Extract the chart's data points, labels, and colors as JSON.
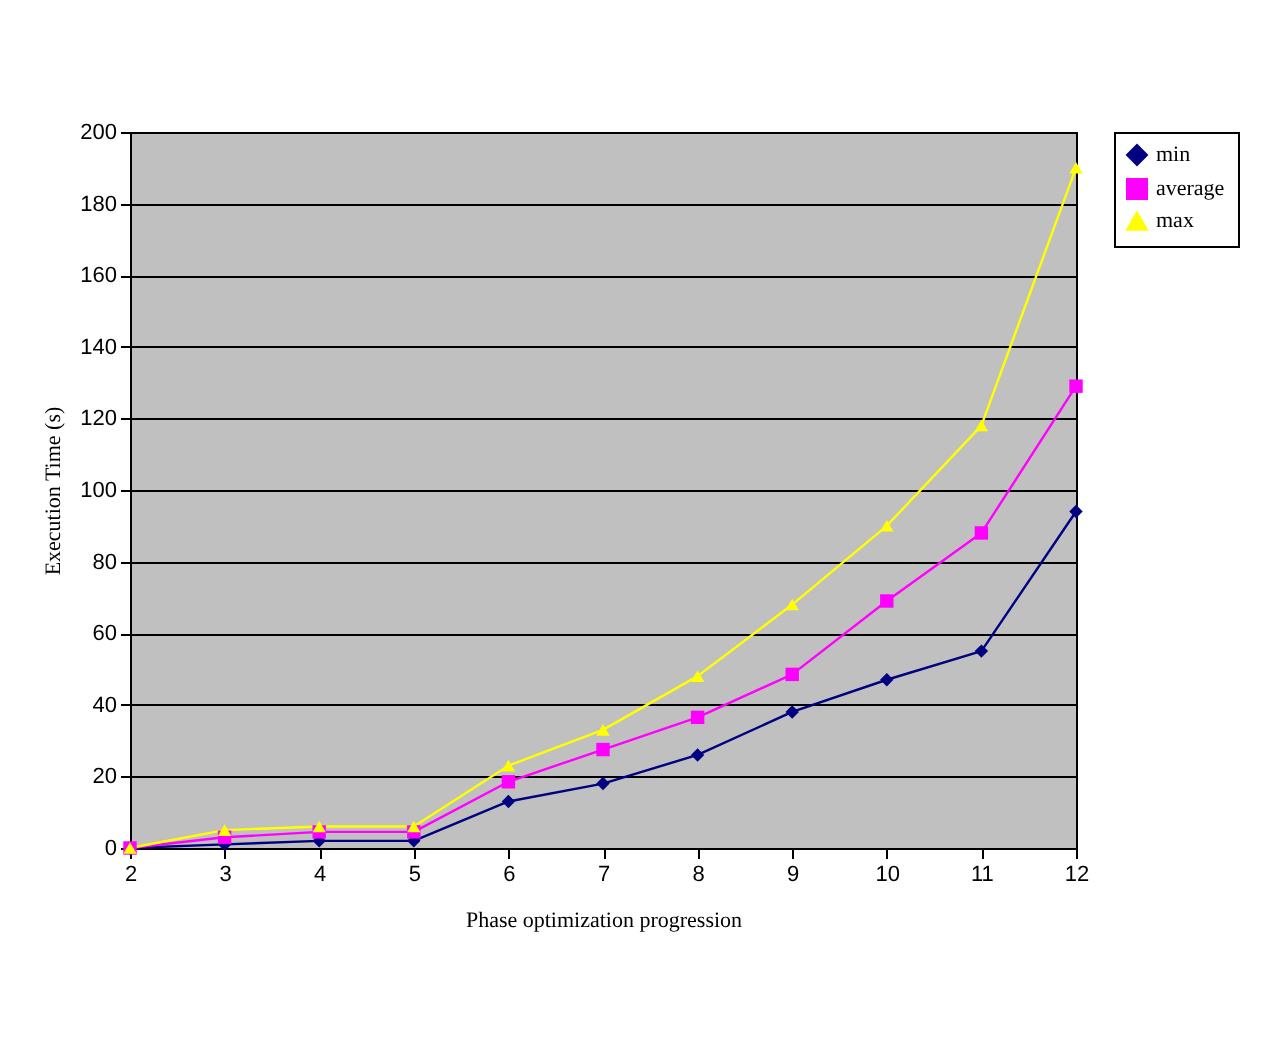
{
  "chart_data": {
    "type": "line",
    "xlabel": "Phase optimization progression",
    "ylabel": "Execution Time (s)",
    "categories": [
      "2",
      "3",
      "4",
      "5",
      "6",
      "7",
      "8",
      "9",
      "10",
      "11",
      "12"
    ],
    "series": [
      {
        "name": "min",
        "color": "#000080",
        "marker": "diamond",
        "values": [
          0,
          1,
          2,
          2,
          13,
          18,
          26,
          38,
          47,
          55,
          94
        ]
      },
      {
        "name": "average",
        "color": "#ff00ff",
        "marker": "square",
        "values": [
          0,
          3,
          4.5,
          4.5,
          18.5,
          27.5,
          36.5,
          48.5,
          69,
          88,
          129
        ]
      },
      {
        "name": "max",
        "color": "#ffff00",
        "marker": "triangle",
        "values": [
          0,
          5,
          6,
          6,
          23,
          33,
          48,
          68,
          90,
          118,
          190
        ]
      }
    ],
    "ylim": [
      0,
      200
    ],
    "yticks": [
      0,
      20,
      40,
      60,
      80,
      100,
      120,
      140,
      160,
      180,
      200
    ],
    "grid": "y",
    "legend": "right"
  }
}
